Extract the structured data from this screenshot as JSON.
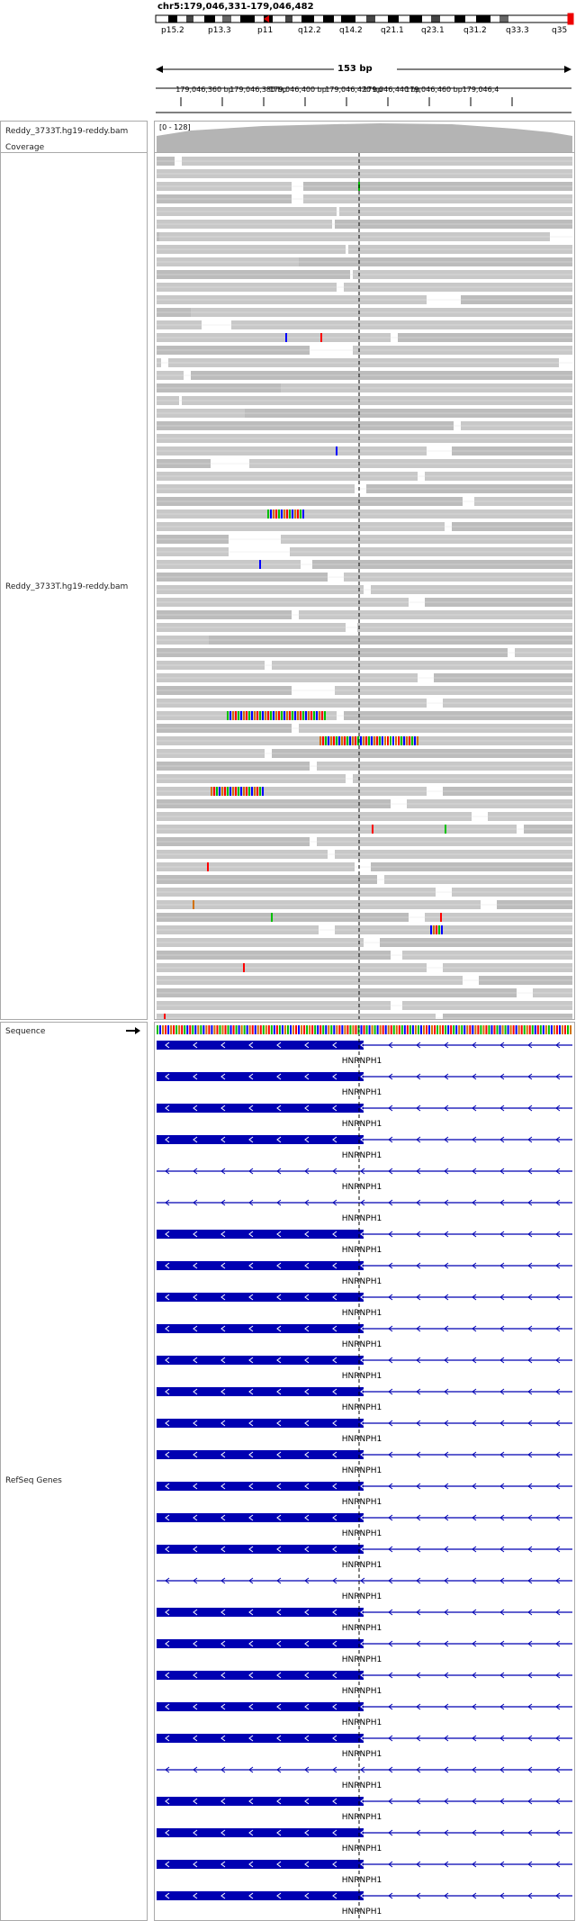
{
  "header": {
    "locus": "chr5:179,046,331-179,046,482",
    "bands": [
      "p15.2",
      "p13.3",
      "p11",
      "q12.2",
      "q14.2",
      "q21.1",
      "q23.1",
      "q31.2",
      "q33.3",
      "q35"
    ],
    "span_label": "153 bp",
    "ruler_ticks": [
      "179,046,360 bp",
      "179,046,380 bp",
      "179,046,400 bp",
      "179,046,420 bp",
      "179,046,440 bp",
      "179,046,460 bp",
      "179,046,4"
    ]
  },
  "tracks": {
    "coverage": {
      "name": "Reddy_3733T.hg19-reddy.bam Coverage",
      "range_label": "[0 - 128]"
    },
    "alignment": {
      "name": "Reddy_3733T.hg19-reddy.bam"
    },
    "sequence": {
      "name": "Sequence"
    },
    "refseq": {
      "name": "RefSeq Genes",
      "gene": "HNRNPH1",
      "count": 28
    }
  },
  "colors": {
    "read": "#c8c8c8",
    "coverage": "#b4b4b4",
    "gene": "#0000b2",
    "A": "#00c000",
    "C": "#0000ff",
    "G": "#d17105",
    "T": "#ff0000"
  }
}
